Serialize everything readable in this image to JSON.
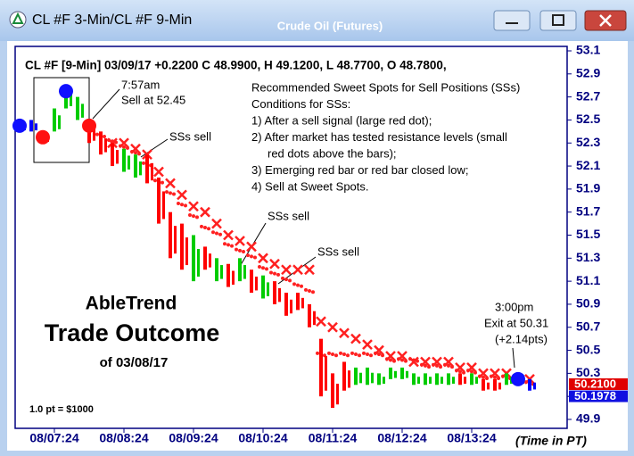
{
  "window": {
    "title": "CL #F 3-Min/CL #F 9-Min",
    "subtitle": "Crude Oil (Futures)"
  },
  "chart_data": {
    "type": "hilo",
    "header": "CL #F [9-Min] 03/09/17 +0.2200 C 48.9900, H 49.1200, L 48.7700, O 48.7800,",
    "categories": [
      null,
      null,
      null,
      "08/07:24",
      null,
      null,
      null,
      null,
      null,
      "08/08:24",
      null,
      null,
      null,
      null,
      null,
      "08/09:24",
      null,
      null,
      null,
      null,
      null,
      "08/10:24",
      null,
      null,
      null,
      null,
      null,
      "08/11:24",
      null,
      null,
      null,
      null,
      null,
      "08/12:24",
      null,
      null,
      null,
      null,
      null,
      "08/13:24",
      null,
      null,
      null,
      null,
      null
    ],
    "high": [
      52.5,
      52.5,
      52.4,
      52.6,
      52.8,
      52.7,
      52.5,
      52.4,
      52.3,
      52.25,
      52.2,
      52.2,
      52.0,
      51.7,
      51.6,
      51.5,
      51.4,
      51.3,
      51.25,
      51.3,
      51.2,
      51.15,
      51.1,
      51.0,
      51.0,
      50.9,
      50.6,
      50.3,
      50.4,
      50.35,
      50.35,
      50.3,
      50.35,
      50.35,
      50.3,
      50.3,
      50.3,
      50.3,
      50.3,
      50.3,
      50.25,
      50.25,
      50.3,
      50.3,
      50.25
    ],
    "low": [
      52.4,
      52.4,
      52.3,
      52.4,
      52.6,
      52.5,
      52.3,
      52.2,
      52.1,
      52.05,
      52.0,
      51.95,
      51.6,
      51.3,
      51.2,
      51.1,
      51.2,
      51.1,
      51.05,
      51.1,
      51.0,
      50.95,
      50.9,
      50.8,
      50.85,
      50.7,
      50.1,
      50.0,
      50.15,
      50.2,
      50.2,
      50.2,
      50.25,
      50.25,
      50.2,
      50.2,
      50.2,
      50.2,
      50.2,
      50.2,
      50.15,
      50.15,
      50.2,
      50.2,
      50.15
    ],
    "bar_colors": [
      "#0000ff",
      "#0000ff",
      "#ff0000",
      "#00cc00",
      "#00cc00",
      "#00cc00",
      "#ff0000",
      "#ff0000",
      "#ff0000",
      "#00cc00",
      "#00cc00",
      "#ff0000",
      "#ff0000",
      "#ff0000",
      "#ff0000",
      "#00cc00",
      "#ff0000",
      "#00cc00",
      "#ff0000",
      "#00cc00",
      "#ff0000",
      "#00cc00",
      "#ff0000",
      "#ff0000",
      "#ff0000",
      "#ff0000",
      "#ff0000",
      "#ff0000",
      "#ff0000",
      "#00cc00",
      "#00cc00",
      "#00cc00",
      "#00cc00",
      "#00cc00",
      "#00cc00",
      "#00cc00",
      "#00cc00",
      "#00cc00",
      "#ff0000",
      "#00cc00",
      "#ff0000",
      "#ff0000",
      "#00cc00",
      "#0000ff",
      "#0000ff"
    ],
    "stops": {
      "color": "#ff2020",
      "values": [
        null,
        null,
        null,
        null,
        null,
        null,
        null,
        null,
        52.3,
        52.3,
        52.25,
        52.2,
        52.05,
        51.95,
        51.85,
        51.75,
        51.7,
        51.6,
        51.5,
        51.45,
        51.4,
        51.3,
        51.25,
        51.2,
        51.2,
        51.2,
        50.75,
        50.7,
        50.65,
        50.6,
        50.55,
        50.5,
        50.45,
        50.45,
        50.4,
        50.4,
        50.4,
        50.4,
        50.35,
        50.35,
        50.3,
        50.3,
        50.3,
        50.25,
        50.25
      ]
    },
    "dots": {
      "color": "#ff2020",
      "values": [
        null,
        null,
        null,
        null,
        null,
        null,
        null,
        52.35,
        52.3,
        52.25,
        52.2,
        52.1,
        51.95,
        51.85,
        51.75,
        51.65,
        51.55,
        51.5,
        51.4,
        51.35,
        51.3,
        51.2,
        51.15,
        51.1,
        51.05,
        51.0,
        50.45,
        50.45,
        50.45,
        50.45,
        50.45,
        50.45,
        50.4,
        50.4,
        50.4,
        50.35,
        50.35,
        50.35,
        50.3,
        50.3,
        50.25,
        50.25,
        50.25,
        50.25,
        50.2
      ]
    },
    "signals": [
      {
        "index": 0,
        "value": 52.45,
        "color": "#1010ff"
      },
      {
        "index": 2,
        "value": 52.35,
        "color": "#ff1010"
      },
      {
        "index": 4,
        "value": 52.75,
        "color": "#1010ff"
      },
      {
        "index": 6,
        "value": 52.45,
        "color": "#ff1010"
      },
      {
        "index": 43,
        "value": 50.25,
        "color": "#1010ff"
      }
    ],
    "ylim": [
      49.9,
      53.1
    ],
    "yticks": [
      53.1,
      52.9,
      52.7,
      52.5,
      52.3,
      52.1,
      51.9,
      51.7,
      51.5,
      51.3,
      51.1,
      50.9,
      50.7,
      50.5,
      50.3,
      50.1,
      49.9
    ],
    "last_prices": [
      {
        "value": 50.21,
        "label": "50.2100",
        "color": "#e00000"
      },
      {
        "value": 50.1978,
        "label": "50.1978",
        "color": "#1010e0"
      }
    ],
    "x_unit": "(Time in PT)",
    "annotations": {
      "entry_time": "7:57am",
      "entry": "Sell at 52.45",
      "ss1": "SSs sell",
      "ss2": "SSs sell",
      "ss3": "SSs sell",
      "exit_time": "3:00pm",
      "exit": "Exit at 50.31",
      "gain": "(+2.14pts)",
      "brand": "AbleTrend",
      "outcome": "Trade Outcome",
      "date": "of 03/08/17",
      "point_value": "1.0 pt = $1000"
    },
    "notes": [
      "Recommended Sweet Spots for Sell Positions (SSs)",
      "Conditions for SSs:",
      "1) After a sell signal (large red dot);",
      "2) After market has tested resistance levels (small",
      "red dots above the bars);",
      "3) Emerging red bar or red bar closed low;",
      "4) Sell at Sweet Spots."
    ]
  }
}
